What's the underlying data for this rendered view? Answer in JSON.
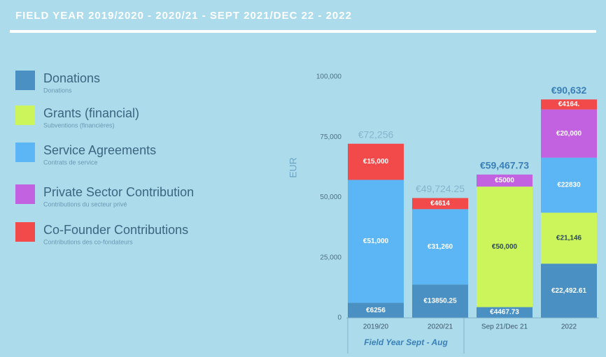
{
  "header": {
    "title": "FIELD YEAR 2019/2020  -  2020/21  - SEPT 2021/DEC 22 - 2022"
  },
  "chart_data": {
    "type": "stacked_bar",
    "ylabel": "EUR",
    "categories": [
      "2019/20",
      "2020/21",
      "Sep 21/Dec 21",
      "2022"
    ],
    "group_label": "Field Year Sept - Aug",
    "series": [
      {
        "name": "Donations",
        "subtitle": "Donations",
        "color": "#4a90c2",
        "values": [
          6256,
          13850.25,
          4467.73,
          22492.61
        ],
        "value_labels": [
          "€6256",
          "€13850.25",
          "€4467.73",
          "€22,492.61"
        ]
      },
      {
        "name": "Grants (financial)",
        "subtitle": "Subventions (financières)",
        "color": "#ccf55c",
        "values": [
          null,
          null,
          50000,
          21146
        ],
        "value_labels": [
          null,
          null,
          "€50,000",
          "€21,146"
        ]
      },
      {
        "name": "Service Agreements",
        "subtitle": "Contrats de service",
        "color": "#5cb6f6",
        "values": [
          51000,
          31260,
          null,
          22830
        ],
        "value_labels": [
          "€51,000",
          "€31,260",
          null,
          "€22830"
        ]
      },
      {
        "name": "Private Sector Contribution",
        "subtitle": "Contributions du secteur privé",
        "color": "#c262e0",
        "values": [
          null,
          null,
          5000,
          20000
        ],
        "value_labels": [
          null,
          null,
          "€5000",
          "€20,000"
        ]
      },
      {
        "name": "Co-Founder Contributions",
        "subtitle": "Contributions des co-fondateurs",
        "color": "#f24a4a",
        "values": [
          15000,
          4614,
          null,
          4164
        ],
        "value_labels": [
          "€15,000",
          "€4614",
          null,
          "€4164."
        ]
      }
    ],
    "totals": [
      72256,
      49724.25,
      59467.73,
      90632
    ],
    "total_labels": [
      "€72,256",
      "€49,724.25",
      "€59,467.73",
      "€90,632"
    ],
    "total_colors": [
      "#86b4cc",
      "#86b4cc",
      "#3a7fb6",
      "#3a7fb6"
    ],
    "ylim": [
      0,
      100000
    ],
    "yticks": [
      0,
      {
        "value": 25000,
        "label": "25,000"
      },
      {
        "value": 50000,
        "label": "50,000"
      },
      {
        "value": 75000,
        "label": "75,000"
      },
      {
        "value": 100000,
        "label": "100,000"
      }
    ]
  }
}
